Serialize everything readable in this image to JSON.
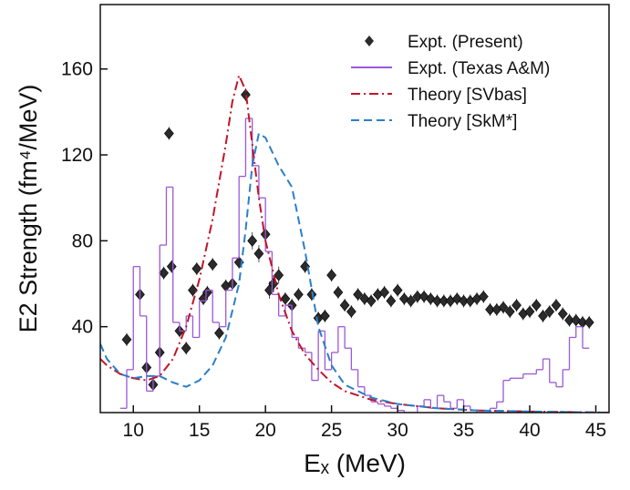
{
  "chart_data": {
    "type": "line",
    "x_label": "Eₓ (MeV)",
    "y_label": "E2 Strength (fm⁴/MeV)",
    "xlim": [
      7.5,
      46
    ],
    "ylim": [
      0,
      190
    ],
    "xticks": [
      10,
      15,
      20,
      25,
      30,
      35,
      40,
      45
    ],
    "yticks": [
      40,
      80,
      120,
      160
    ],
    "series": [
      {
        "name": "Expt. (Present)",
        "kind": "markers",
        "color": "#2b2b2b",
        "x": [
          9.5,
          10.5,
          11,
          11.5,
          12,
          12.3,
          12.7,
          12.9,
          13.5,
          14,
          14.5,
          14.8,
          15.3,
          15.6,
          16,
          16.5,
          17,
          17.5,
          18,
          18.5,
          19,
          19.5,
          20,
          20.3,
          20.6,
          21,
          21.5,
          22,
          22.5,
          23,
          23.5,
          24,
          24.5,
          25,
          25.5,
          26,
          26.5,
          27,
          27.5,
          28,
          28.5,
          29,
          29.5,
          30,
          30.5,
          31,
          31.5,
          32,
          32.5,
          33,
          33.5,
          34,
          34.5,
          35,
          35.5,
          36,
          36.5,
          37,
          37.5,
          38,
          38.5,
          39,
          39.5,
          40,
          40.5,
          41,
          41.5,
          42,
          42.5,
          43,
          43.5,
          44,
          44.5
        ],
        "values": [
          34,
          55,
          21,
          13,
          28,
          65,
          130,
          68,
          38,
          30,
          57,
          67,
          53,
          56,
          69,
          37,
          59,
          60,
          70,
          148,
          80,
          74,
          83,
          57,
          60,
          64,
          53,
          50,
          55,
          68,
          55,
          44,
          45,
          64,
          56,
          50,
          47,
          55,
          53,
          52,
          55,
          56,
          52,
          57,
          53,
          52,
          54,
          54,
          53,
          52,
          52,
          52,
          53,
          52,
          52,
          53,
          54,
          48,
          48,
          49,
          47,
          50,
          46,
          47,
          50,
          45,
          47,
          50,
          46,
          43,
          43,
          42,
          42
        ],
        "errors": [
          3,
          3,
          3,
          3,
          3,
          3,
          3,
          3,
          3,
          3,
          3,
          3,
          3,
          3,
          3,
          3,
          3,
          3,
          3,
          3,
          4,
          4,
          4,
          4,
          4,
          4,
          3,
          3,
          3,
          3,
          3,
          3,
          3,
          3,
          3,
          3,
          3,
          3,
          3,
          3,
          3,
          3,
          3,
          3,
          3,
          3,
          3,
          3,
          3,
          3,
          3,
          3,
          3,
          3,
          3,
          3,
          3,
          3,
          3,
          3,
          3,
          3,
          3,
          3,
          3,
          3,
          3,
          3,
          3,
          3,
          3,
          3,
          3
        ]
      },
      {
        "name": "Expt. (Texas A&M)",
        "kind": "step",
        "color": "#9b59d6",
        "bins": [
          9,
          9.5,
          10,
          10.5,
          11,
          11.5,
          12,
          12.5,
          13,
          13.5,
          14,
          14.5,
          15,
          15.5,
          16,
          16.5,
          17,
          17.5,
          18,
          18.5,
          19,
          19.5,
          20,
          20.5,
          21,
          21.5,
          22,
          22.5,
          23,
          23.5,
          24,
          24.5,
          25,
          25.5,
          26,
          26.5,
          27,
          27.5,
          28,
          28.5,
          29,
          29.5,
          30,
          30.5,
          31,
          31.5,
          32,
          32.5,
          33,
          33.5,
          34,
          34.5,
          35,
          35.5,
          36,
          36.5,
          37,
          37.5,
          38,
          38.5,
          39,
          39.5,
          40,
          40.5,
          41,
          41.5,
          42,
          42.5,
          43,
          43.5,
          44,
          44.5
        ],
        "values": [
          2,
          20,
          68,
          45,
          10,
          17,
          78,
          105,
          42,
          38,
          45,
          35,
          52,
          57,
          42,
          40,
          57,
          72,
          110,
          137,
          115,
          100,
          75,
          55,
          45,
          50,
          35,
          30,
          28,
          15,
          38,
          20,
          28,
          40,
          30,
          20,
          12,
          8,
          5,
          4,
          3,
          2,
          1,
          0,
          0,
          3,
          6,
          2,
          8,
          5,
          2,
          6,
          3,
          1,
          0,
          0,
          2,
          5,
          15,
          16,
          16,
          18,
          18,
          20,
          25,
          14,
          12,
          20,
          35,
          40,
          30
        ]
      },
      {
        "name": "Theory [SVbas]",
        "kind": "dashdot",
        "color": "#c0152a",
        "x": [
          7.5,
          8,
          9,
          10,
          11,
          12,
          13,
          14,
          15,
          16,
          17,
          17.5,
          18,
          18.5,
          19,
          19.5,
          20,
          21,
          22,
          23,
          24,
          25,
          26,
          28,
          30,
          33,
          36,
          40,
          46
        ],
        "values": [
          25,
          22,
          18,
          16,
          15,
          17,
          25,
          40,
          62,
          90,
          125,
          145,
          157,
          150,
          125,
          100,
          80,
          55,
          38,
          27,
          20,
          14,
          10,
          6,
          4,
          2,
          1,
          0.5,
          0
        ]
      },
      {
        "name": "Theory [SkM*]",
        "kind": "dashed",
        "color": "#2a7fc9",
        "x": [
          7.5,
          8,
          9,
          10,
          11,
          12,
          13,
          14,
          15,
          16,
          17,
          18,
          18.5,
          19,
          19.5,
          20,
          21,
          22,
          23,
          24,
          25,
          26,
          28,
          30,
          33,
          36,
          40,
          46
        ],
        "values": [
          32,
          25,
          18,
          16,
          17,
          17,
          14,
          12,
          15,
          22,
          35,
          60,
          85,
          115,
          130,
          128,
          115,
          105,
          75,
          40,
          22,
          13,
          7,
          4,
          2,
          1,
          0.5,
          0
        ]
      }
    ]
  }
}
